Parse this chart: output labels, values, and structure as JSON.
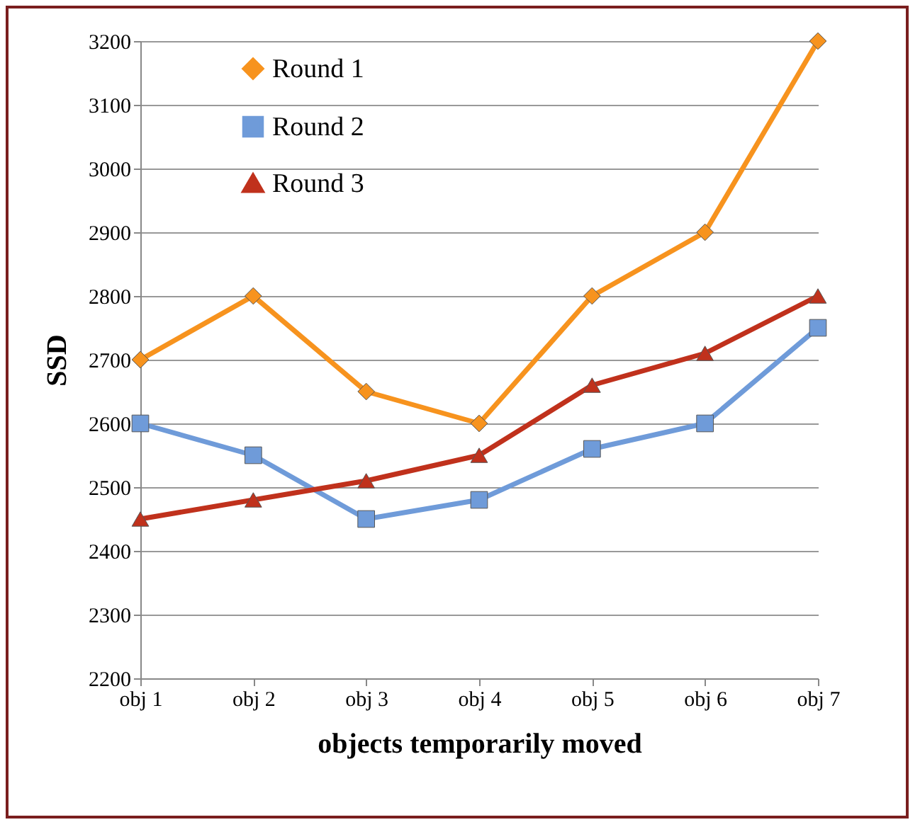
{
  "chart_data": {
    "type": "line",
    "xlabel": "objects temporarily moved",
    "ylabel": "SSD",
    "categories": [
      "obj 1",
      "obj 2",
      "obj 3",
      "obj 4",
      "obj 5",
      "obj 6",
      "obj 7"
    ],
    "ylim": [
      2200,
      3200
    ],
    "yticks": [
      2200,
      2300,
      2400,
      2500,
      2600,
      2700,
      2800,
      2900,
      3000,
      3100,
      3200
    ],
    "grid": "y",
    "legend": "top left",
    "series": [
      {
        "name": "Round 1",
        "color": "#f7931e",
        "marker": "diamond",
        "values": [
          2700,
          2800,
          2650,
          2600,
          2800,
          2900,
          3200
        ]
      },
      {
        "name": "Round 2",
        "color": "#6f9bd9",
        "marker": "square",
        "values": [
          2600,
          2550,
          2450,
          2480,
          2560,
          2600,
          2750
        ]
      },
      {
        "name": "Round 3",
        "color": "#c0311c",
        "marker": "triangle",
        "values": [
          2450,
          2480,
          2510,
          2550,
          2660,
          2710,
          2800
        ]
      }
    ]
  }
}
